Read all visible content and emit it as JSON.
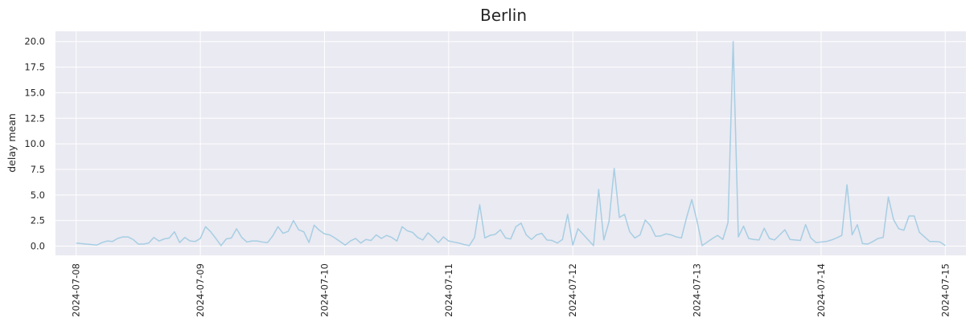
{
  "chart_data": {
    "type": "line",
    "title": "Berlin",
    "xlabel": "",
    "ylabel": "delay mean",
    "x_axis": {
      "start": "2024-07-08",
      "end": "2024-07-15",
      "ticks": [
        "2024-07-08",
        "2024-07-09",
        "2024-07-10",
        "2024-07-11",
        "2024-07-12",
        "2024-07-13",
        "2024-07-14",
        "2024-07-15"
      ],
      "xlim": [
        "2024-07-07T20:00",
        "2024-07-15T04:00"
      ]
    },
    "y_axis": {
      "ticks": [
        "0.0",
        "2.5",
        "5.0",
        "7.5",
        "10.0",
        "12.5",
        "15.0",
        "17.5",
        "20.0"
      ],
      "ylim": [
        -0.9,
        21.0
      ]
    },
    "grid": true,
    "line_color": "#a6cee3",
    "background_color": "#eaeaf2",
    "series": [
      {
        "values": [
          [
            "2024-07-08T00:00",
            0.3
          ],
          [
            "2024-07-08T01:00",
            0.25
          ],
          [
            "2024-07-08T02:00",
            0.2
          ],
          [
            "2024-07-08T03:00",
            0.15
          ],
          [
            "2024-07-08T04:00",
            0.1
          ],
          [
            "2024-07-08T05:00",
            0.35
          ],
          [
            "2024-07-08T06:00",
            0.5
          ],
          [
            "2024-07-08T07:00",
            0.45
          ],
          [
            "2024-07-08T08:00",
            0.75
          ],
          [
            "2024-07-08T09:00",
            0.9
          ],
          [
            "2024-07-08T10:00",
            0.9
          ],
          [
            "2024-07-08T11:00",
            0.65
          ],
          [
            "2024-07-08T12:00",
            0.2
          ],
          [
            "2024-07-08T13:00",
            0.2
          ],
          [
            "2024-07-08T14:00",
            0.3
          ],
          [
            "2024-07-08T15:00",
            0.85
          ],
          [
            "2024-07-08T16:00",
            0.5
          ],
          [
            "2024-07-08T17:00",
            0.7
          ],
          [
            "2024-07-08T18:00",
            0.8
          ],
          [
            "2024-07-08T19:00",
            1.4
          ],
          [
            "2024-07-08T20:00",
            0.35
          ],
          [
            "2024-07-08T21:00",
            0.85
          ],
          [
            "2024-07-08T22:00",
            0.5
          ],
          [
            "2024-07-08T23:00",
            0.45
          ],
          [
            "2024-07-09T00:00",
            0.75
          ],
          [
            "2024-07-09T01:00",
            1.9
          ],
          [
            "2024-07-09T02:00",
            1.4
          ],
          [
            "2024-07-09T03:00",
            0.75
          ],
          [
            "2024-07-09T04:00",
            0.05
          ],
          [
            "2024-07-09T05:00",
            0.7
          ],
          [
            "2024-07-09T06:00",
            0.8
          ],
          [
            "2024-07-09T07:00",
            1.7
          ],
          [
            "2024-07-09T08:00",
            0.85
          ],
          [
            "2024-07-09T09:00",
            0.4
          ],
          [
            "2024-07-09T10:00",
            0.5
          ],
          [
            "2024-07-09T11:00",
            0.5
          ],
          [
            "2024-07-09T12:00",
            0.4
          ],
          [
            "2024-07-09T13:00",
            0.35
          ],
          [
            "2024-07-09T14:00",
            1.0
          ],
          [
            "2024-07-09T15:00",
            1.9
          ],
          [
            "2024-07-09T16:00",
            1.25
          ],
          [
            "2024-07-09T17:00",
            1.45
          ],
          [
            "2024-07-09T18:00",
            2.5
          ],
          [
            "2024-07-09T19:00",
            1.6
          ],
          [
            "2024-07-09T20:00",
            1.4
          ],
          [
            "2024-07-09T21:00",
            0.35
          ],
          [
            "2024-07-09T22:00",
            2.05
          ],
          [
            "2024-07-09T23:00",
            1.55
          ],
          [
            "2024-07-10T00:00",
            1.2
          ],
          [
            "2024-07-10T01:00",
            1.1
          ],
          [
            "2024-07-10T02:00",
            0.8
          ],
          [
            "2024-07-10T03:00",
            0.45
          ],
          [
            "2024-07-10T04:00",
            0.1
          ],
          [
            "2024-07-10T05:00",
            0.5
          ],
          [
            "2024-07-10T06:00",
            0.75
          ],
          [
            "2024-07-10T07:00",
            0.3
          ],
          [
            "2024-07-10T08:00",
            0.65
          ],
          [
            "2024-07-10T09:00",
            0.55
          ],
          [
            "2024-07-10T10:00",
            1.1
          ],
          [
            "2024-07-10T11:00",
            0.75
          ],
          [
            "2024-07-10T12:00",
            1.05
          ],
          [
            "2024-07-10T13:00",
            0.85
          ],
          [
            "2024-07-10T14:00",
            0.5
          ],
          [
            "2024-07-10T15:00",
            1.9
          ],
          [
            "2024-07-10T16:00",
            1.5
          ],
          [
            "2024-07-10T17:00",
            1.35
          ],
          [
            "2024-07-10T18:00",
            0.85
          ],
          [
            "2024-07-10T19:00",
            0.6
          ],
          [
            "2024-07-10T20:00",
            1.3
          ],
          [
            "2024-07-10T21:00",
            0.85
          ],
          [
            "2024-07-10T22:00",
            0.35
          ],
          [
            "2024-07-10T23:00",
            0.9
          ],
          [
            "2024-07-11T00:00",
            0.5
          ],
          [
            "2024-07-11T01:00",
            0.4
          ],
          [
            "2024-07-11T02:00",
            0.3
          ],
          [
            "2024-07-11T03:00",
            0.15
          ],
          [
            "2024-07-11T04:00",
            0.05
          ],
          [
            "2024-07-11T05:00",
            0.85
          ],
          [
            "2024-07-11T06:00",
            4.05
          ],
          [
            "2024-07-11T07:00",
            0.8
          ],
          [
            "2024-07-11T08:00",
            1.05
          ],
          [
            "2024-07-11T09:00",
            1.15
          ],
          [
            "2024-07-11T10:00",
            1.6
          ],
          [
            "2024-07-11T11:00",
            0.8
          ],
          [
            "2024-07-11T12:00",
            0.7
          ],
          [
            "2024-07-11T13:00",
            1.9
          ],
          [
            "2024-07-11T14:00",
            2.25
          ],
          [
            "2024-07-11T15:00",
            1.1
          ],
          [
            "2024-07-11T16:00",
            0.65
          ],
          [
            "2024-07-11T17:00",
            1.1
          ],
          [
            "2024-07-11T18:00",
            1.25
          ],
          [
            "2024-07-11T19:00",
            0.6
          ],
          [
            "2024-07-11T20:00",
            0.55
          ],
          [
            "2024-07-11T21:00",
            0.3
          ],
          [
            "2024-07-11T22:00",
            0.65
          ],
          [
            "2024-07-11T23:00",
            3.1
          ],
          [
            "2024-07-12T00:00",
            0.1
          ],
          [
            "2024-07-12T01:00",
            1.7
          ],
          [
            "2024-07-12T02:00",
            1.15
          ],
          [
            "2024-07-12T03:00",
            0.6
          ],
          [
            "2024-07-12T04:00",
            0.05
          ],
          [
            "2024-07-12T05:00",
            5.55
          ],
          [
            "2024-07-12T06:00",
            0.6
          ],
          [
            "2024-07-12T07:00",
            2.4
          ],
          [
            "2024-07-12T08:00",
            7.6
          ],
          [
            "2024-07-12T09:00",
            2.8
          ],
          [
            "2024-07-12T10:00",
            3.1
          ],
          [
            "2024-07-12T11:00",
            1.4
          ],
          [
            "2024-07-12T12:00",
            0.8
          ],
          [
            "2024-07-12T13:00",
            1.1
          ],
          [
            "2024-07-12T14:00",
            2.55
          ],
          [
            "2024-07-12T15:00",
            2.0
          ],
          [
            "2024-07-12T16:00",
            0.95
          ],
          [
            "2024-07-12T17:00",
            1.0
          ],
          [
            "2024-07-12T18:00",
            1.2
          ],
          [
            "2024-07-12T19:00",
            1.1
          ],
          [
            "2024-07-12T20:00",
            0.9
          ],
          [
            "2024-07-12T21:00",
            0.8
          ],
          [
            "2024-07-12T22:00",
            2.8
          ],
          [
            "2024-07-12T23:00",
            4.55
          ],
          [
            "2024-07-13T00:00",
            2.5
          ],
          [
            "2024-07-13T01:00",
            0.05
          ],
          [
            "2024-07-13T02:00",
            0.4
          ],
          [
            "2024-07-13T03:00",
            0.75
          ],
          [
            "2024-07-13T04:00",
            1.05
          ],
          [
            "2024-07-13T05:00",
            0.65
          ],
          [
            "2024-07-13T06:00",
            2.3
          ],
          [
            "2024-07-13T07:00",
            20.0
          ],
          [
            "2024-07-13T08:00",
            0.9
          ],
          [
            "2024-07-13T09:00",
            1.95
          ],
          [
            "2024-07-13T10:00",
            0.75
          ],
          [
            "2024-07-13T11:00",
            0.65
          ],
          [
            "2024-07-13T12:00",
            0.6
          ],
          [
            "2024-07-13T13:00",
            1.75
          ],
          [
            "2024-07-13T14:00",
            0.75
          ],
          [
            "2024-07-13T15:00",
            0.6
          ],
          [
            "2024-07-13T16:00",
            1.1
          ],
          [
            "2024-07-13T17:00",
            1.6
          ],
          [
            "2024-07-13T18:00",
            0.65
          ],
          [
            "2024-07-13T19:00",
            0.6
          ],
          [
            "2024-07-13T20:00",
            0.55
          ],
          [
            "2024-07-13T21:00",
            2.1
          ],
          [
            "2024-07-13T22:00",
            0.8
          ],
          [
            "2024-07-13T23:00",
            0.35
          ],
          [
            "2024-07-14T00:00",
            0.4
          ],
          [
            "2024-07-14T01:00",
            0.45
          ],
          [
            "2024-07-14T02:00",
            0.6
          ],
          [
            "2024-07-14T03:00",
            0.8
          ],
          [
            "2024-07-14T04:00",
            1.05
          ],
          [
            "2024-07-14T05:00",
            6.0
          ],
          [
            "2024-07-14T06:00",
            1.1
          ],
          [
            "2024-07-14T07:00",
            2.1
          ],
          [
            "2024-07-14T08:00",
            0.25
          ],
          [
            "2024-07-14T09:00",
            0.2
          ],
          [
            "2024-07-14T10:00",
            0.45
          ],
          [
            "2024-07-14T11:00",
            0.75
          ],
          [
            "2024-07-14T12:00",
            0.85
          ],
          [
            "2024-07-14T13:00",
            4.8
          ],
          [
            "2024-07-14T14:00",
            2.6
          ],
          [
            "2024-07-14T15:00",
            1.7
          ],
          [
            "2024-07-14T16:00",
            1.55
          ],
          [
            "2024-07-14T17:00",
            2.95
          ],
          [
            "2024-07-14T18:00",
            2.95
          ],
          [
            "2024-07-14T19:00",
            1.35
          ],
          [
            "2024-07-14T20:00",
            0.9
          ],
          [
            "2024-07-14T21:00",
            0.45
          ],
          [
            "2024-07-14T22:00",
            0.45
          ],
          [
            "2024-07-14T23:00",
            0.4
          ],
          [
            "2024-07-15T00:00",
            0.05
          ]
        ]
      }
    ]
  }
}
